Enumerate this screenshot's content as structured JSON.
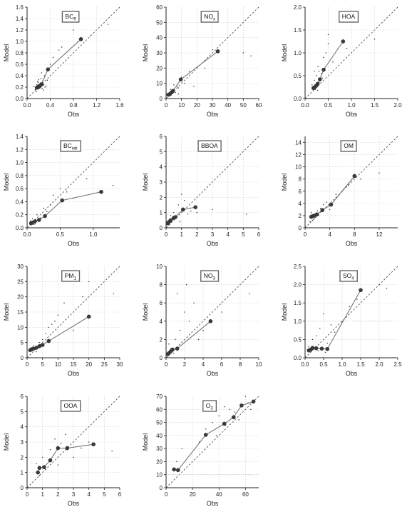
{
  "chart_data": [
    {
      "type": "scatter",
      "title": "BC",
      "title_sub": "ff",
      "xlabel": "Obs",
      "ylabel": "Model",
      "xlim": [
        0,
        1.6
      ],
      "ylim": [
        0,
        1.6
      ],
      "xticks": [
        0.0,
        0.4,
        0.8,
        1.2,
        1.6
      ],
      "yticks": [
        0.0,
        0.2,
        0.4,
        0.6,
        0.8,
        1.0,
        1.2,
        1.4,
        1.6
      ],
      "xtick_labels": [
        "0.0",
        "0.4",
        "0.8",
        "1.2",
        "1.6"
      ],
      "ytick_labels": [
        "0.0",
        "0.2",
        "0.4",
        "0.6",
        "0.8",
        "1.0",
        "1.2",
        "1.4",
        "1.6"
      ],
      "binned": {
        "x": [
          0.17,
          0.19,
          0.2,
          0.22,
          0.25,
          0.36,
          0.93
        ],
        "y": [
          0.19,
          0.2,
          0.21,
          0.22,
          0.25,
          0.51,
          1.04
        ]
      },
      "scatter": {
        "x": [
          0.15,
          0.18,
          0.21,
          0.24,
          0.26,
          0.28,
          0.3,
          0.33,
          0.12,
          0.16,
          0.2,
          0.23,
          0.17,
          0.22,
          0.25,
          0.27,
          0.31,
          0.19,
          0.14,
          0.29,
          0.35,
          0.4,
          0.45,
          0.55,
          0.6,
          0.8,
          1.1,
          1.4
        ],
        "y": [
          0.2,
          0.3,
          0.25,
          0.35,
          0.18,
          0.15,
          0.4,
          0.22,
          0.21,
          0.12,
          0.33,
          0.27,
          0.24,
          0.18,
          0.45,
          0.31,
          0.2,
          0.28,
          0.16,
          0.24,
          0.32,
          0.6,
          0.72,
          0.85,
          0.9,
          1.2,
          1.1,
          1.3
        ]
      },
      "refline_y": null
    },
    {
      "type": "scatter",
      "title": "NO",
      "title_sub": "x",
      "xlabel": "Obs",
      "ylabel": "Model",
      "xlim": [
        0,
        60
      ],
      "ylim": [
        0,
        60
      ],
      "xticks": [
        0,
        10,
        20,
        30,
        40,
        50,
        60
      ],
      "yticks": [
        0,
        10,
        20,
        30,
        40,
        50,
        60
      ],
      "xtick_labels": [
        "0",
        "10",
        "20",
        "30",
        "40",
        "50",
        "60"
      ],
      "ytick_labels": [
        "0",
        "10",
        "20",
        "30",
        "40",
        "50",
        "60"
      ],
      "binned": {
        "x": [
          1.5,
          2.5,
          3.5,
          4.5,
          9.5,
          33.5
        ],
        "y": [
          2.5,
          3.0,
          4.0,
          5.0,
          12.5,
          31.0
        ]
      },
      "scatter": {
        "x": [
          2,
          3,
          4,
          5,
          6,
          7,
          8,
          10,
          12,
          15,
          18,
          25,
          30,
          50,
          55,
          3,
          5,
          8
        ],
        "y": [
          3,
          2,
          5,
          6,
          4,
          8,
          7,
          14,
          10,
          18,
          8,
          20,
          32,
          30,
          28,
          6,
          9,
          3
        ]
      },
      "refline_y": null
    },
    {
      "type": "scatter",
      "title": "HOA",
      "title_sub": "",
      "xlabel": "Obs",
      "ylabel": "Model",
      "xlim": [
        0,
        2.0
      ],
      "ylim": [
        0,
        2.0
      ],
      "xticks": [
        0.0,
        0.5,
        1.0,
        1.5,
        2.0
      ],
      "yticks": [
        0.0,
        0.5,
        1.0,
        1.5,
        2.0
      ],
      "xtick_labels": [
        "0.0",
        "0.5",
        "1.0",
        "1.5",
        "2.0"
      ],
      "ytick_labels": [
        "0.0",
        "0.5",
        "1.0",
        "1.5",
        "2.0"
      ],
      "binned": {
        "x": [
          0.18,
          0.21,
          0.24,
          0.27,
          0.32,
          0.4,
          0.82
        ],
        "y": [
          0.23,
          0.25,
          0.28,
          0.32,
          0.42,
          0.63,
          1.25
        ]
      },
      "scatter": {
        "x": [
          0.15,
          0.2,
          0.25,
          0.3,
          0.35,
          0.22,
          0.28,
          0.4,
          0.45,
          0.5,
          0.6,
          0.3,
          0.38,
          0.2,
          0.27,
          1.5,
          0.9,
          0.5
        ],
        "y": [
          0.3,
          0.4,
          0.5,
          0.6,
          0.55,
          0.2,
          0.7,
          0.9,
          1.0,
          1.4,
          0.8,
          0.35,
          0.45,
          0.6,
          0.18,
          1.3,
          1.1,
          1.2
        ]
      },
      "refline_y": null
    },
    {
      "type": "scatter",
      "title": "BC",
      "title_sub": "wb",
      "xlabel": "Obs",
      "ylabel": "Model",
      "xlim": [
        0,
        1.4
      ],
      "ylim": [
        0,
        1.4
      ],
      "xticks": [
        0.0,
        0.5,
        1.0
      ],
      "yticks": [
        0.0,
        0.2,
        0.4,
        0.6,
        0.8,
        1.0,
        1.2,
        1.4
      ],
      "xtick_labels": [
        "0.0",
        "0.5",
        "1.0"
      ],
      "ytick_labels": [
        "0.0",
        "0.2",
        "0.4",
        "0.6",
        "0.8",
        "1.0",
        "1.2",
        "1.4"
      ],
      "binned": {
        "x": [
          0.06,
          0.08,
          0.12,
          0.18,
          0.27,
          0.53,
          1.12
        ],
        "y": [
          0.07,
          0.08,
          0.1,
          0.12,
          0.18,
          0.42,
          0.55
        ]
      },
      "scatter": {
        "x": [
          0.05,
          0.1,
          0.15,
          0.2,
          0.25,
          0.3,
          0.35,
          0.4,
          0.5,
          0.6,
          0.7,
          0.9,
          1.3,
          0.08,
          0.12
        ],
        "y": [
          0.1,
          0.05,
          0.2,
          0.15,
          0.3,
          0.25,
          0.35,
          0.5,
          0.6,
          0.55,
          0.45,
          0.75,
          0.65,
          0.14,
          0.06
        ]
      },
      "refline_y": null
    },
    {
      "type": "scatter",
      "title": "BBOA",
      "title_sub": "",
      "xlabel": "Obs",
      "ylabel": "Model",
      "xlim": [
        0,
        6
      ],
      "ylim": [
        0,
        6
      ],
      "xticks": [
        0,
        1,
        2,
        3,
        4,
        5,
        6
      ],
      "yticks": [
        0,
        1,
        2,
        3,
        4,
        5,
        6
      ],
      "xtick_labels": [
        "0",
        "1",
        "2",
        "3",
        "4",
        "5",
        "6"
      ],
      "ytick_labels": [
        "0",
        "1",
        "2",
        "3",
        "4",
        "5",
        "6"
      ],
      "binned": {
        "x": [
          0.1,
          0.2,
          0.3,
          0.5,
          0.6,
          1.1,
          1.9
        ],
        "y": [
          0.3,
          0.4,
          0.5,
          0.65,
          0.7,
          1.2,
          1.35
        ]
      },
      "scatter": {
        "x": [
          0.2,
          0.4,
          0.5,
          0.7,
          0.8,
          1.0,
          1.2,
          1.4,
          1.6,
          2.0,
          3.0,
          5.2,
          0.3,
          0.9
        ],
        "y": [
          0.2,
          0.6,
          1.0,
          0.8,
          1.5,
          2.2,
          1.8,
          0.9,
          1.1,
          1.0,
          1.2,
          0.9,
          0.8,
          0.4
        ]
      },
      "refline_y": null
    },
    {
      "type": "scatter",
      "title": "OM",
      "title_sub": "",
      "xlabel": "Obs",
      "ylabel": "Model",
      "xlim": [
        0,
        15
      ],
      "ylim": [
        0,
        15
      ],
      "xticks": [
        0,
        4,
        8,
        12
      ],
      "yticks": [
        0,
        2,
        4,
        6,
        8,
        10,
        12,
        14
      ],
      "xtick_labels": [
        "0",
        "4",
        "8",
        "12"
      ],
      "ytick_labels": [
        "0",
        "2",
        "4",
        "6",
        "8",
        "10",
        "12",
        "14"
      ],
      "binned": {
        "x": [
          1.0,
          1.2,
          1.5,
          1.9,
          2.8,
          4.2,
          8.0
        ],
        "y": [
          1.8,
          1.9,
          2.0,
          2.2,
          2.9,
          3.8,
          8.5
        ]
      },
      "scatter": {
        "x": [
          1,
          1.5,
          2,
          2.5,
          3,
          3.5,
          4,
          5,
          6,
          7,
          9,
          12,
          1.2,
          2.2,
          0.8
        ],
        "y": [
          2.5,
          1.5,
          2.8,
          3.2,
          3.8,
          4.2,
          3.0,
          5.5,
          6.0,
          7.0,
          8.0,
          9.0,
          1.2,
          2.0,
          1.0
        ]
      },
      "refline_y": null
    },
    {
      "type": "scatter",
      "title": "PM",
      "title_sub": "1",
      "xlabel": "Obs",
      "ylabel": "Model",
      "xlim": [
        0,
        30
      ],
      "ylim": [
        0,
        30
      ],
      "xticks": [
        0,
        5,
        10,
        15,
        20,
        25,
        30
      ],
      "yticks": [
        0,
        5,
        10,
        15,
        20,
        25,
        30
      ],
      "xtick_labels": [
        "0",
        "5",
        "10",
        "15",
        "20",
        "25",
        "30"
      ],
      "ytick_labels": [
        "0",
        "5",
        "10",
        "15",
        "20",
        "25",
        "30"
      ],
      "binned": {
        "x": [
          1.0,
          1.5,
          2.0,
          3.0,
          4.0,
          5.0,
          7.0,
          20.0
        ],
        "y": [
          2.5,
          2.8,
          3.0,
          3.3,
          3.8,
          4.2,
          5.5,
          13.5
        ]
      },
      "scatter": {
        "x": [
          1,
          2,
          3,
          4,
          5,
          6,
          7,
          8,
          9,
          10,
          12,
          15,
          18,
          20,
          28
        ],
        "y": [
          3,
          4,
          2,
          5,
          6,
          8,
          10,
          11,
          12,
          14,
          18,
          9,
          20,
          25,
          21
        ]
      },
      "refline_y": null
    },
    {
      "type": "scatter",
      "title": "NO",
      "title_sub": "3",
      "xlabel": "Obs",
      "ylabel": "Model",
      "xlim": [
        0,
        10
      ],
      "ylim": [
        0,
        10
      ],
      "xticks": [
        0,
        2,
        4,
        6,
        8,
        10
      ],
      "yticks": [
        0,
        2,
        4,
        6,
        8,
        10
      ],
      "xtick_labels": [
        "0",
        "2",
        "4",
        "6",
        "8",
        "10"
      ],
      "ytick_labels": [
        "0",
        "2",
        "4",
        "6",
        "8",
        "10"
      ],
      "binned": {
        "x": [
          0.2,
          0.3,
          0.5,
          0.7,
          1.2,
          4.8
        ],
        "y": [
          0.4,
          0.5,
          0.7,
          0.9,
          1.0,
          4.0
        ]
      },
      "scatter": {
        "x": [
          0.5,
          1,
          1.5,
          2,
          2.5,
          3,
          4,
          0.8,
          1.2,
          0.3,
          2.2,
          3.5,
          6,
          9
        ],
        "y": [
          1,
          2,
          3,
          5,
          4,
          6,
          3,
          0.5,
          7,
          1.5,
          8,
          2,
          5,
          7
        ]
      },
      "refline_y": null
    },
    {
      "type": "scatter",
      "title": "SO",
      "title_sub": "4",
      "xlabel": "Obs",
      "ylabel": "Model",
      "xlim": [
        0,
        2.5
      ],
      "ylim": [
        0,
        2.5
      ],
      "xticks": [
        0.0,
        0.5,
        1.0,
        1.5,
        2.0,
        2.5
      ],
      "yticks": [
        0.0,
        0.5,
        1.0,
        1.5,
        2.0,
        2.5
      ],
      "xtick_labels": [
        "0.0",
        "0.5",
        "1.0",
        "1.5",
        "2.0",
        "2.5"
      ],
      "ytick_labels": [
        "0.0",
        "0.5",
        "1.0",
        "1.5",
        "2.0",
        "2.5"
      ],
      "binned": {
        "x": [
          0.1,
          0.15,
          0.2,
          0.3,
          0.45,
          0.6,
          1.5
        ],
        "y": [
          0.2,
          0.22,
          0.27,
          0.26,
          0.25,
          0.24,
          1.85
        ]
      },
      "scatter": {
        "x": [
          0.1,
          0.2,
          0.3,
          0.4,
          0.5,
          0.6,
          0.7,
          0.8,
          1.0,
          1.2,
          1.4,
          2.0,
          2.2,
          0.35,
          0.55
        ],
        "y": [
          0.3,
          0.5,
          0.6,
          0.8,
          1.2,
          0.4,
          0.9,
          0.7,
          1.0,
          1.4,
          1.6,
          2.0,
          1.9,
          0.2,
          0.15
        ]
      },
      "refline_y": 1.0
    },
    {
      "type": "scatter",
      "title": "OOA",
      "title_sub": "",
      "xlabel": "Obs",
      "ylabel": "Model",
      "xlim": [
        0,
        6
      ],
      "ylim": [
        0,
        6
      ],
      "xticks": [
        0,
        1,
        2,
        3,
        4,
        5,
        6
      ],
      "yticks": [
        0,
        1,
        2,
        3,
        4,
        5,
        6
      ],
      "xtick_labels": [
        "0",
        "1",
        "2",
        "3",
        "4",
        "5",
        "6"
      ],
      "ytick_labels": [
        "0",
        "1",
        "2",
        "3",
        "4",
        "5",
        "6"
      ],
      "binned": {
        "x": [
          0.7,
          0.8,
          1.1,
          1.5,
          2.0,
          2.6,
          4.3
        ],
        "y": [
          1.0,
          1.3,
          1.35,
          1.8,
          2.6,
          2.6,
          2.85
        ]
      },
      "scatter": {
        "x": [
          0.8,
          1.0,
          1.2,
          1.5,
          1.8,
          2.0,
          2.2,
          2.5,
          3.0,
          3.5,
          4.0,
          5.5,
          0.6,
          2.8
        ],
        "y": [
          0.8,
          2.0,
          1.2,
          2.5,
          3.2,
          1.5,
          2.9,
          3.5,
          2.0,
          2.6,
          3.0,
          2.4,
          1.6,
          5.5
        ]
      },
      "refline_y": null
    },
    {
      "type": "scatter",
      "title": "O",
      "title_sub": "3",
      "xlabel": "Obs",
      "ylabel": "Model",
      "xlim": [
        0,
        70
      ],
      "ylim": [
        0,
        70
      ],
      "xticks": [
        0,
        20,
        40,
        60
      ],
      "yticks": [
        0,
        10,
        20,
        30,
        40,
        50,
        60,
        70
      ],
      "xtick_labels": [
        "0",
        "20",
        "40",
        "60"
      ],
      "ytick_labels": [
        "0",
        "10",
        "20",
        "30",
        "40",
        "50",
        "60",
        "70"
      ],
      "binned": {
        "x": [
          6,
          9,
          30,
          44,
          51,
          57,
          66
        ],
        "y": [
          14,
          13.5,
          40.5,
          49,
          54,
          63,
          66
        ]
      },
      "scatter": {
        "x": [
          8,
          12,
          25,
          30,
          35,
          40,
          45,
          48,
          52,
          55,
          60,
          62,
          64,
          38,
          44
        ],
        "y": [
          20,
          30,
          35,
          45,
          50,
          55,
          48,
          60,
          58,
          52,
          70,
          65,
          60,
          40,
          62
        ]
      },
      "refline_y": 10
    }
  ]
}
